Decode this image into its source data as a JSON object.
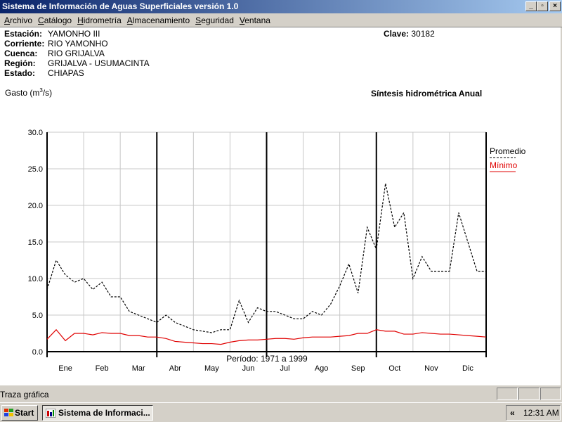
{
  "window": {
    "title": "Sistema de Información de Aguas Superficiales  versión 1.0",
    "min_label": "_",
    "max_label": "▫",
    "close_label": "×"
  },
  "menu": [
    {
      "key": "A",
      "rest": "rchivo"
    },
    {
      "key": "C",
      "rest": "atálogo"
    },
    {
      "key": "H",
      "rest": "idrometría"
    },
    {
      "key": "A",
      "rest": "lmacenamiento"
    },
    {
      "key": "S",
      "rest": "eguridad"
    },
    {
      "key": "V",
      "rest": "entana"
    }
  ],
  "station": {
    "estacion_label": "Estación:",
    "estacion": "YAMONHO III",
    "corriente_label": "Corriente:",
    "corriente": "RIO YAMONHO",
    "cuenca_label": "Cuenca:",
    "cuenca": "RIO GRIJALVA",
    "region_label": "Región:",
    "region": "GRIJALVA - USUMACINTA",
    "estado_label": "Estado:",
    "estado": "CHIAPAS",
    "clave_label": "Clave:",
    "clave": "30182"
  },
  "chart_data": {
    "type": "line",
    "title": "Síntesis hidrométrica   Anual",
    "ylabel_pre": "Gasto (m",
    "ylabel_sup": "3",
    "ylabel_post": "/s)",
    "ylim": [
      0,
      30
    ],
    "yticks": [
      "0.0",
      "5.0",
      "10.0",
      "15.0",
      "20.0",
      "25.0",
      "30.0"
    ],
    "categories": [
      "Ene",
      "Feb",
      "Mar",
      "Abr",
      "May",
      "Jun",
      "Jul",
      "Ago",
      "Sep",
      "Oct",
      "Nov",
      "Dic"
    ],
    "x": [
      0.0,
      0.25,
      0.5,
      0.75,
      1.0,
      1.25,
      1.5,
      1.75,
      2.0,
      2.25,
      2.5,
      2.75,
      3.0,
      3.25,
      3.5,
      3.75,
      4.0,
      4.25,
      4.5,
      4.75,
      5.0,
      5.25,
      5.5,
      5.75,
      6.0,
      6.25,
      6.5,
      6.75,
      7.0,
      7.25,
      7.5,
      7.75,
      8.0,
      8.25,
      8.5,
      8.75,
      9.0,
      9.25,
      9.5,
      9.75,
      10.0,
      10.25,
      10.5,
      10.75,
      11.0,
      11.25,
      11.5,
      11.75,
      12.0
    ],
    "series": [
      {
        "name": "Promedio",
        "style": "dashed",
        "color": "#000000",
        "values": [
          8.5,
          12.5,
          10.5,
          9.5,
          10.0,
          8.5,
          9.5,
          7.5,
          7.5,
          5.5,
          5.0,
          4.5,
          4.0,
          5.0,
          4.0,
          3.5,
          3.0,
          2.8,
          2.6,
          3.0,
          3.0,
          7.0,
          4.0,
          6.0,
          5.5,
          5.5,
          5.0,
          4.5,
          4.5,
          5.5,
          5.0,
          6.5,
          9.0,
          12.0,
          8.0,
          17.0,
          14.0,
          23.0,
          17.0,
          19.0,
          10.0,
          13.0,
          11.0,
          11.0,
          11.0,
          19.0,
          15.0,
          11.0,
          11.0
        ]
      },
      {
        "name": "Mínimo",
        "style": "solid",
        "color": "#e00000",
        "values": [
          1.7,
          3.0,
          1.5,
          2.5,
          2.5,
          2.3,
          2.6,
          2.5,
          2.5,
          2.2,
          2.2,
          2.0,
          2.0,
          1.8,
          1.4,
          1.3,
          1.2,
          1.1,
          1.1,
          1.0,
          1.3,
          1.5,
          1.6,
          1.6,
          1.7,
          1.8,
          1.8,
          1.7,
          1.9,
          2.0,
          2.0,
          2.0,
          2.1,
          2.2,
          2.5,
          2.5,
          3.0,
          2.8,
          2.8,
          2.4,
          2.4,
          2.6,
          2.5,
          2.4,
          2.4,
          2.3,
          2.2,
          2.1,
          2.0
        ]
      }
    ],
    "quarter_lines_at_months": [
      3,
      6,
      9
    ],
    "legend_position": "right",
    "grid": true
  },
  "periodo": "Período:  1971 a 1999",
  "status": {
    "text": "Traza gráfica"
  },
  "taskbar": {
    "start": "Start",
    "task": "Sistema de Informaci...",
    "chev": "«",
    "clock": "12:31 AM"
  }
}
